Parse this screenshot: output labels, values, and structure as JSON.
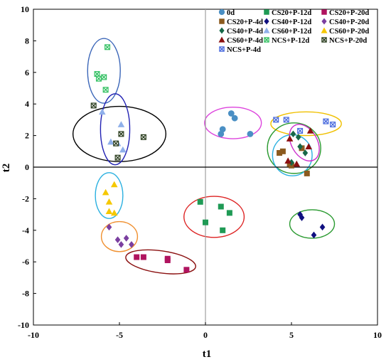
{
  "chart_data": {
    "type": "scatter",
    "title": "",
    "xlabel": "t1",
    "ylabel": "t2",
    "xlim": [
      -10,
      10
    ],
    "ylim": [
      -10,
      10
    ],
    "xticks": [
      -10,
      -5,
      0,
      5,
      10
    ],
    "yticks": [
      -10,
      -8,
      -6,
      -4,
      -2,
      0,
      2,
      4,
      6,
      8,
      10
    ],
    "grid": false,
    "legend_position": "top-right",
    "series": [
      {
        "name": "0d",
        "marker": "circle",
        "color": "#4a8fc4",
        "points": [
          [
            0.9,
            2.1
          ],
          [
            1.0,
            2.4
          ],
          [
            1.5,
            3.4
          ],
          [
            1.7,
            3.1
          ],
          [
            2.6,
            2.1
          ]
        ]
      },
      {
        "name": "CS20+P-12d",
        "marker": "square",
        "color": "#1f9a55",
        "points": [
          [
            -0.3,
            -2.2
          ],
          [
            0,
            -3.5
          ],
          [
            0.9,
            -2.5
          ],
          [
            1.0,
            -4.0
          ],
          [
            1.4,
            -2.9
          ]
        ]
      },
      {
        "name": "CS20+P-20d",
        "marker": "square",
        "color": "#b0135f",
        "points": [
          [
            -4.0,
            -5.7
          ],
          [
            -3.6,
            -5.7
          ],
          [
            -2.2,
            -5.8
          ],
          [
            -2.2,
            -5.9
          ],
          [
            -1.1,
            -6.5
          ]
        ]
      },
      {
        "name": "CS20+P-4d",
        "marker": "square",
        "color": "#8b5a1e",
        "points": [
          [
            4.3,
            0.9
          ],
          [
            4.5,
            1.0
          ],
          [
            4.9,
            0.2
          ],
          [
            5.0,
            0.1
          ],
          [
            5.6,
            1.2
          ],
          [
            5.9,
            -0.4
          ]
        ]
      },
      {
        "name": "CS40+P-12d",
        "marker": "diamond",
        "color": "#101080",
        "points": [
          [
            5.5,
            -3.0
          ],
          [
            5.6,
            -3.2
          ],
          [
            6.3,
            -4.3
          ],
          [
            6.8,
            -3.8
          ]
        ]
      },
      {
        "name": "CS40+P-20d",
        "marker": "diamond",
        "color": "#7b3fa0",
        "points": [
          [
            -5.6,
            -3.8
          ],
          [
            -5.1,
            -4.6
          ],
          [
            -4.9,
            -4.9
          ],
          [
            -4.6,
            -4.5
          ],
          [
            -4.3,
            -4.9
          ]
        ]
      },
      {
        "name": "CS40+P-4d",
        "marker": "diamond",
        "color": "#176848",
        "points": [
          [
            5.1,
            2.1
          ],
          [
            5.4,
            1.9
          ],
          [
            5.5,
            1.3
          ],
          [
            5.8,
            0.9
          ],
          [
            5.0,
            0.3
          ]
        ]
      },
      {
        "name": "CS60+P-12d",
        "marker": "triangle",
        "color": "#8fb0ea",
        "points": [
          [
            -6.0,
            3.5
          ],
          [
            -5.5,
            1.6
          ],
          [
            -5.1,
            1.5
          ],
          [
            -4.9,
            2.7
          ],
          [
            -4.8,
            1.1
          ]
        ]
      },
      {
        "name": "CS60+P-20d",
        "marker": "triangle",
        "color": "#f5c800",
        "points": [
          [
            -5.8,
            -1.6
          ],
          [
            -5.6,
            -2.2
          ],
          [
            -5.3,
            -1.1
          ],
          [
            -5.6,
            -2.8
          ],
          [
            -5.3,
            -2.9
          ]
        ]
      },
      {
        "name": "CS60+P-4d",
        "marker": "triangle",
        "color": "#8b1010",
        "points": [
          [
            4.9,
            1.8
          ],
          [
            4.8,
            0.4
          ],
          [
            5.3,
            0.2
          ],
          [
            6.1,
            2.3
          ],
          [
            6.0,
            1.3
          ]
        ]
      },
      {
        "name": "NCS+P-12d",
        "marker": "boxx",
        "color": "#2fbf5f",
        "points": [
          [
            -5.7,
            7.6
          ],
          [
            -6.3,
            5.9
          ],
          [
            -6.2,
            5.6
          ],
          [
            -5.9,
            5.7
          ],
          [
            -5.8,
            4.9
          ]
        ]
      },
      {
        "name": "NCS+P-20d",
        "marker": "boxx",
        "color": "#253818",
        "points": [
          [
            -6.5,
            3.9
          ],
          [
            -5.2,
            1.5
          ],
          [
            -4.9,
            2.1
          ],
          [
            -3.6,
            1.9
          ],
          [
            -5.1,
            0.6
          ]
        ]
      },
      {
        "name": "NCS+P-4d",
        "marker": "boxx",
        "color": "#4466dd",
        "points": [
          [
            4.1,
            3.0
          ],
          [
            4.7,
            3.0
          ],
          [
            5.5,
            2.3
          ],
          [
            7.0,
            2.9
          ],
          [
            7.4,
            2.7
          ]
        ]
      }
    ],
    "ellipses": [
      {
        "cx": -5.9,
        "cy": 6.1,
        "rx": 0.95,
        "ry": 2.05,
        "angle": 0,
        "color": "#3b66b8"
      },
      {
        "cx": -5.0,
        "cy": 2.1,
        "rx": 2.7,
        "ry": 1.75,
        "angle": 0,
        "color": "#000000"
      },
      {
        "cx": -5.25,
        "cy": 2.4,
        "rx": 0.85,
        "ry": 2.25,
        "angle": 0,
        "color": "#2121b3"
      },
      {
        "cx": 1.6,
        "cy": 2.8,
        "rx": 1.65,
        "ry": 1.0,
        "angle": 0,
        "color": "#dd44dd"
      },
      {
        "cx": 5.85,
        "cy": 2.75,
        "rx": 2.05,
        "ry": 0.75,
        "angle": 0,
        "color": "#f0c000"
      },
      {
        "cx": 5.15,
        "cy": 1.2,
        "rx": 1.55,
        "ry": 1.6,
        "angle": 0,
        "color": "#2a9a30"
      },
      {
        "cx": 5.05,
        "cy": 0.75,
        "rx": 1.15,
        "ry": 1.3,
        "angle": 0,
        "color": "#2ab0e0"
      },
      {
        "cx": 5.75,
        "cy": 1.55,
        "rx": 0.75,
        "ry": 1.25,
        "angle": 30,
        "color": "#cc2ecc"
      },
      {
        "cx": -5.6,
        "cy": -1.8,
        "rx": 0.8,
        "ry": 1.45,
        "angle": 0,
        "color": "#2ab0e0"
      },
      {
        "cx": -5.0,
        "cy": -4.4,
        "rx": 1.05,
        "ry": 0.95,
        "angle": 0,
        "color": "#f09030"
      },
      {
        "cx": 0.5,
        "cy": -3.15,
        "rx": 1.75,
        "ry": 1.3,
        "angle": 0,
        "color": "#dd2222"
      },
      {
        "cx": -2.6,
        "cy": -6.0,
        "rx": 2.05,
        "ry": 0.7,
        "angle": -8,
        "color": "#8b1010"
      },
      {
        "cx": 6.2,
        "cy": -3.6,
        "rx": 1.3,
        "ry": 0.9,
        "angle": 0,
        "color": "#2a9a30"
      }
    ]
  }
}
